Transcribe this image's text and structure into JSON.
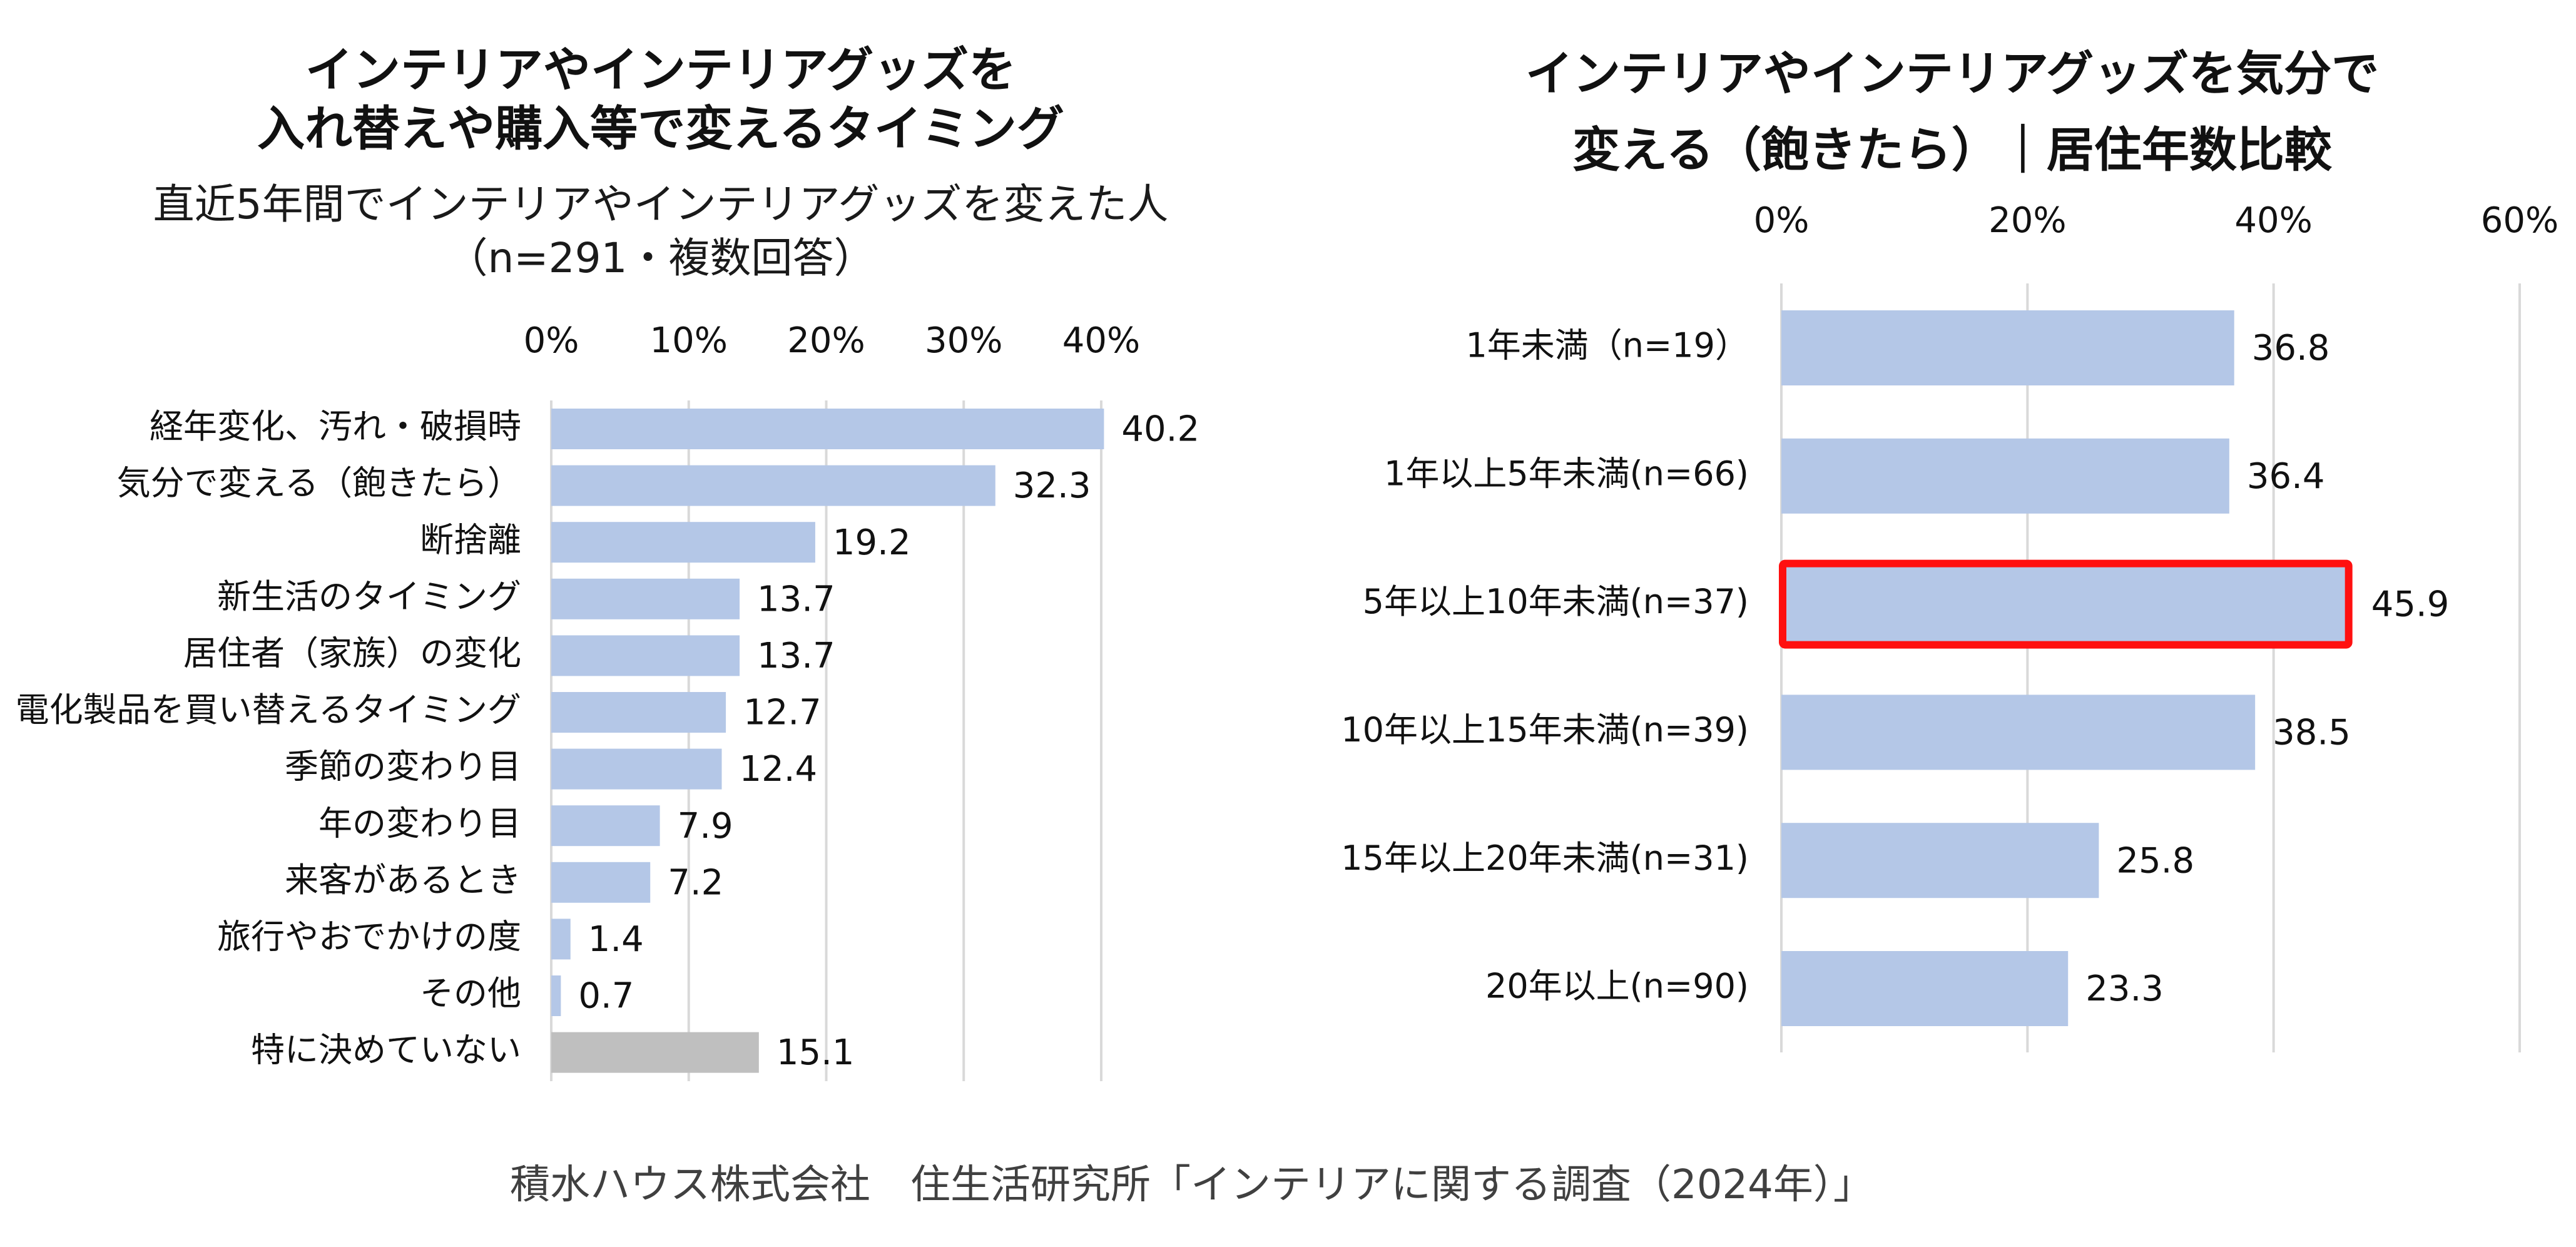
{
  "chart_data": [
    {
      "type": "bar",
      "orientation": "horizontal",
      "title": "インテリアやインテリアグッズを\n入れ替えや購入等で変えるタイミング",
      "title_lines": [
        "インテリアやインテリアグッズを",
        "入れ替えや購入等で変えるタイミング"
      ],
      "subtitle_lines": [
        "直近5年間でインテリアやインテリアグッズを変えた人",
        "（n=291・複数回答）"
      ],
      "xlabel": "",
      "ylabel": "",
      "xlim": [
        0,
        40
      ],
      "xticks": [
        0,
        10,
        20,
        30,
        40
      ],
      "xtick_labels": [
        "0%",
        "10%",
        "20%",
        "30%",
        "40%"
      ],
      "axis_position": "top",
      "grid": true,
      "categories": [
        "経年変化、汚れ・破損時",
        "気分で変える（飽きたら）",
        "断捨離",
        "新生活のタイミング",
        "居住者（家族）の変化",
        "電化製品を買い替えるタイミング",
        "季節の変わり目",
        "年の変わり目",
        "来客があるとき",
        "旅行やおでかけの度",
        "その他",
        "特に決めていない"
      ],
      "values": [
        40.2,
        32.3,
        19.2,
        13.7,
        13.7,
        12.7,
        12.4,
        7.9,
        7.2,
        1.4,
        0.7,
        15.1
      ],
      "value_labels": [
        "40.2",
        "32.3",
        "19.2",
        "13.7",
        "13.7",
        "12.7",
        "12.4",
        "7.9",
        "7.2",
        "1.4",
        "0.7",
        "15.1"
      ],
      "bar_colors": [
        "#B4C7E7",
        "#B4C7E7",
        "#B4C7E7",
        "#B4C7E7",
        "#B4C7E7",
        "#B4C7E7",
        "#B4C7E7",
        "#B4C7E7",
        "#B4C7E7",
        "#B4C7E7",
        "#B4C7E7",
        "#BFBFBF"
      ]
    },
    {
      "type": "bar",
      "orientation": "horizontal",
      "title": "インテリアやインテリアグッズを気分で\n変える（飽きたら）｜居住年数比較",
      "title_lines": [
        "インテリアやインテリアグッズを気分で",
        "変える（飽きたら）｜居住年数比較"
      ],
      "xlabel": "",
      "ylabel": "",
      "xlim": [
        0,
        60
      ],
      "xticks": [
        0,
        20,
        40,
        60
      ],
      "xtick_labels": [
        "0%",
        "20%",
        "40%",
        "60%"
      ],
      "axis_position": "top",
      "grid": true,
      "categories": [
        "1年未満（n=19）",
        "1年以上5年未満(n=66)",
        "5年以上10年未満(n=37)",
        "10年以上15年未満(n=39)",
        "15年以上20年未満(n=31)",
        "20年以上(n=90)"
      ],
      "values": [
        36.8,
        36.4,
        45.9,
        38.5,
        25.8,
        23.3
      ],
      "value_labels": [
        "36.8",
        "36.4",
        "45.9",
        "38.5",
        "25.8",
        "23.3"
      ],
      "bar_color": "#B4C7E7",
      "highlighted_index": 2,
      "highlight_color": "#FF1010"
    }
  ],
  "footer": {
    "source": "積水ハウス株式会社　住生活研究所「インテリアに関する調査（2024年）」"
  },
  "colors": {
    "bar": "#B4C7E7",
    "bar_other": "#BFBFBF",
    "grid": "#D9D9D9",
    "highlight": "#FF1010",
    "text": "#1a1a1a",
    "footer_text": "#404040"
  }
}
